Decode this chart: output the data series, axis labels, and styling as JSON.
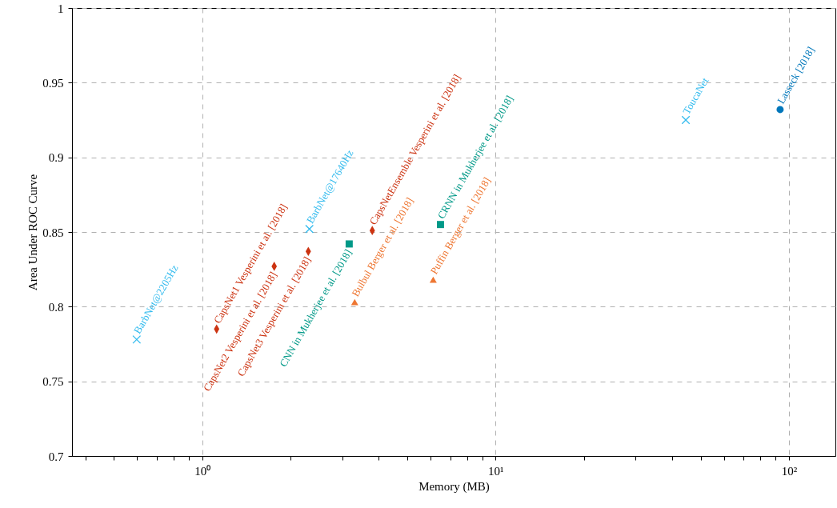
{
  "chart_data": {
    "type": "scatter",
    "xlabel": "Memory (MB)",
    "ylabel": "Area Under ROC Curve",
    "log": "x",
    "grid": true,
    "legend": false,
    "xlim": [
      0.36,
      144
    ],
    "ylim": [
      0.7,
      1
    ],
    "xticks": [
      {
        "value": 0.4,
        "label": null
      },
      {
        "value": 0.5,
        "label": null
      },
      {
        "value": 0.6,
        "label": null
      },
      {
        "value": 0.7,
        "label": null
      },
      {
        "value": 0.8,
        "label": null
      },
      {
        "value": 0.9,
        "label": null
      },
      {
        "value": 1,
        "label": "10⁰"
      },
      {
        "value": 2,
        "label": null
      },
      {
        "value": 3,
        "label": null
      },
      {
        "value": 4,
        "label": null
      },
      {
        "value": 5,
        "label": null
      },
      {
        "value": 6,
        "label": null
      },
      {
        "value": 7,
        "label": null
      },
      {
        "value": 8,
        "label": null
      },
      {
        "value": 9,
        "label": null
      },
      {
        "value": 10,
        "label": "10¹"
      },
      {
        "value": 20,
        "label": null
      },
      {
        "value": 30,
        "label": null
      },
      {
        "value": 40,
        "label": null
      },
      {
        "value": 50,
        "label": null
      },
      {
        "value": 60,
        "label": null
      },
      {
        "value": 70,
        "label": null
      },
      {
        "value": 80,
        "label": null
      },
      {
        "value": 90,
        "label": null
      },
      {
        "value": 100,
        "label": "10²"
      }
    ],
    "yticks": [
      0.7,
      0.75,
      0.8,
      0.85,
      0.9,
      0.95,
      1
    ],
    "series": [
      {
        "color": "#33bbee",
        "marker": "cross",
        "x": [
          0.598,
          2.32,
          44.5
        ],
        "values": [
          0.778,
          0.852,
          0.925
        ]
      },
      {
        "color": "#cc3311",
        "marker": "diamond",
        "x": [
          1.12,
          1.76,
          2.3,
          3.8
        ],
        "values": [
          0.785,
          0.827,
          0.837,
          0.851
        ]
      },
      {
        "color": "#009988",
        "marker": "square",
        "x": [
          3.17,
          6.49
        ],
        "values": [
          0.842,
          0.855
        ]
      },
      {
        "color": "#ee7733",
        "marker": "triangle",
        "x": [
          3.31,
          6.13
        ],
        "values": [
          0.803,
          0.818
        ]
      },
      {
        "color": "#0077bb",
        "marker": "circle",
        "x": [
          93.3
        ],
        "values": [
          0.932
        ]
      }
    ],
    "annotations": [
      {
        "text": "BarbNet@2205Hz",
        "x": 0.598,
        "y": 0.778
      },
      {
        "text": "BarbNet@17640Hz",
        "x": 2.32,
        "y": 0.852
      },
      {
        "text": "ToucaNet",
        "x": 44.5,
        "y": 0.925
      },
      {
        "text": "CapsNet1 Vesperini et al. [2018]",
        "x": 1.12,
        "y": 0.785
      },
      {
        "text": "CapsNet2 Vesperini et al. [2018]",
        "x": 1.76,
        "y": 0.827
      },
      {
        "text": "CapsNet3 Vesperini et al. [2018]",
        "x": 2.3,
        "y": 0.837
      },
      {
        "text": "CapsNetEnsemble Vesperini et al. [2018]",
        "x": 3.8,
        "y": 0.851
      },
      {
        "text": "CNN in Mukherjee et al. [2018]",
        "x": 3.17,
        "y": 0.842
      },
      {
        "text": "CRNN in Mukherjee et al. [2018]",
        "x": 6.49,
        "y": 0.855
      },
      {
        "text": "Bulbul Berger et al. [2018]",
        "x": 3.31,
        "y": 0.803
      },
      {
        "text": "Puffin Berger et al. [2018]",
        "x": 6.13,
        "y": 0.818
      },
      {
        "text": "Lasseck [2018]",
        "x": 93.3,
        "y": 0.932
      }
    ]
  }
}
